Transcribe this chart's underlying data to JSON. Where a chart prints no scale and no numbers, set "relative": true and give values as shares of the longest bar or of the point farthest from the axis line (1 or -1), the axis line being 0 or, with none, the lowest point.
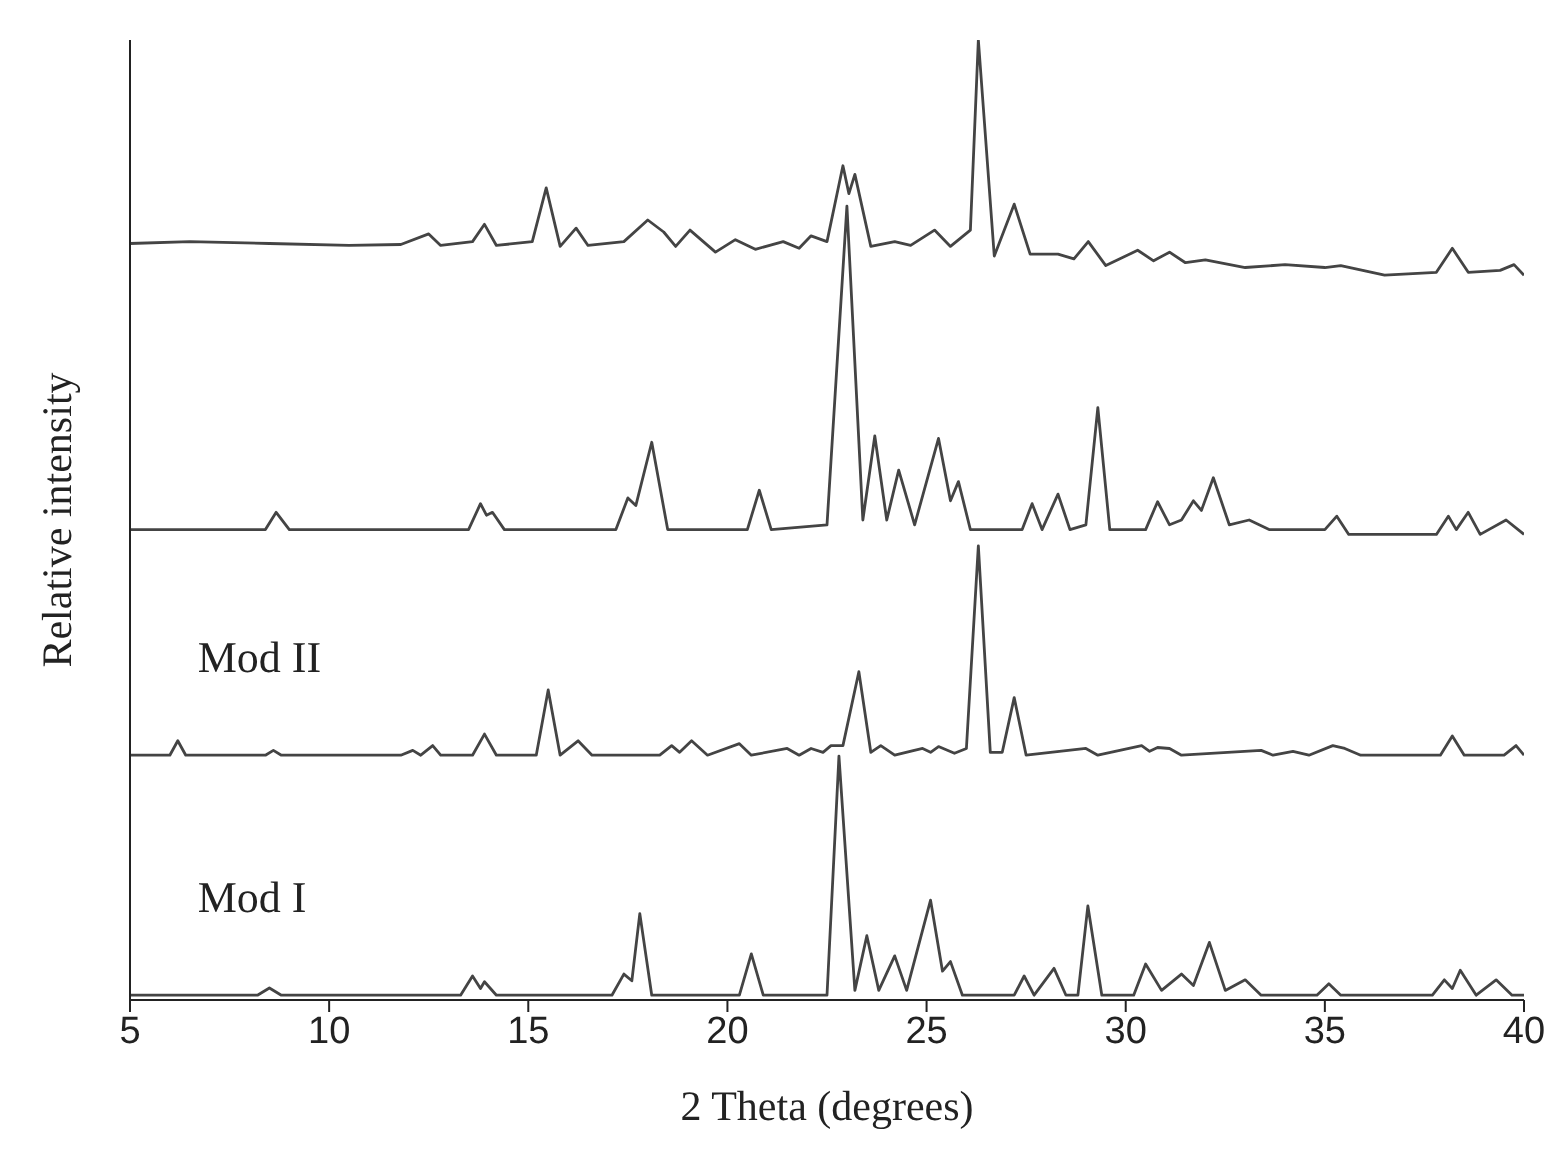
{
  "chart_data": {
    "type": "line",
    "relative": true,
    "xlabel": "2 Theta (degrees)",
    "ylabel": "Relative intensity",
    "xlim": [
      5,
      40
    ],
    "xticks": [
      5,
      10,
      15,
      20,
      25,
      30,
      35,
      40
    ],
    "legend": false,
    "grid": false,
    "marker": "none",
    "line_style": "solid",
    "series": [
      {
        "color": "#444444",
        "x": [
          5,
          6.5,
          8.5,
          10.5,
          11.8,
          12.5,
          12.8,
          13.6,
          13.9,
          14.2,
          15.1,
          15.45,
          15.8,
          16.2,
          16.5,
          17.4,
          18.0,
          18.4,
          18.7,
          19.06,
          19.7,
          20.2,
          20.7,
          21.4,
          21.8,
          22.1,
          22.5,
          22.9,
          23.05,
          23.2,
          23.6,
          24.2,
          24.6,
          25.2,
          25.6,
          26.1,
          26.3,
          26.7,
          27.2,
          27.6,
          28.3,
          28.7,
          29.06,
          29.5,
          30.3,
          30.7,
          31.1,
          31.5,
          32.0,
          33.0,
          34.0,
          35.0,
          35.4,
          36.5,
          37.8,
          38.2,
          38.6,
          39.4,
          39.75,
          40
        ],
        "values": [
          0.788,
          0.79,
          0.788,
          0.786,
          0.787,
          0.798,
          0.786,
          0.79,
          0.808,
          0.786,
          0.79,
          0.846,
          0.785,
          0.804,
          0.786,
          0.79,
          0.8125,
          0.8,
          0.785,
          0.802,
          0.779,
          0.792,
          0.782,
          0.79,
          0.783,
          0.796,
          0.79,
          0.869,
          0.84,
          0.86,
          0.785,
          0.79,
          0.786,
          0.802,
          0.785,
          0.802,
          1.0,
          0.775,
          0.829,
          0.777,
          0.777,
          0.772,
          0.79,
          0.765,
          0.781,
          0.77,
          0.779,
          0.768,
          0.771,
          0.763,
          0.766,
          0.763,
          0.765,
          0.755,
          0.758,
          0.783,
          0.758,
          0.76,
          0.766,
          0.755
        ]
      },
      {
        "color": "#444444",
        "x": [
          5,
          8.4,
          8.67,
          9.0,
          13.5,
          13.8,
          13.95,
          14.1,
          14.4,
          17.2,
          17.5,
          17.7,
          18.1,
          18.5,
          20.5,
          20.8,
          21.1,
          22.5,
          23.0,
          23.4,
          23.7,
          24.0,
          24.3,
          24.7,
          25.3,
          25.6,
          25.8,
          26.1,
          27.4,
          27.65,
          27.9,
          28.3,
          28.6,
          29.0,
          29.3,
          29.6,
          30.5,
          30.8,
          31.1,
          31.4,
          31.7,
          31.9,
          32.2,
          32.6,
          33.1,
          33.6,
          35.0,
          35.3,
          35.6,
          37.8,
          38.1,
          38.3,
          38.6,
          38.9,
          39.55,
          40
        ],
        "values": [
          0.49,
          0.49,
          0.508,
          0.49,
          0.49,
          0.517,
          0.505,
          0.508,
          0.49,
          0.49,
          0.523,
          0.515,
          0.581,
          0.49,
          0.49,
          0.531,
          0.49,
          0.495,
          0.827,
          0.5,
          0.5875,
          0.5,
          0.552,
          0.495,
          0.585,
          0.52,
          0.54,
          0.49,
          0.49,
          0.517,
          0.49,
          0.527,
          0.49,
          0.495,
          0.617,
          0.49,
          0.49,
          0.519,
          0.495,
          0.5,
          0.52,
          0.51,
          0.544,
          0.495,
          0.5,
          0.49,
          0.49,
          0.504,
          0.485,
          0.485,
          0.504,
          0.49,
          0.508,
          0.485,
          0.5,
          0.485
        ]
      },
      {
        "name": "Mod II",
        "color": "#444444",
        "x": [
          5,
          6.0,
          6.2,
          6.4,
          8.4,
          8.6,
          8.8,
          11.8,
          12.1,
          12.3,
          12.6,
          12.8,
          13.6,
          13.9,
          14.2,
          15.2,
          15.5,
          15.8,
          16.25,
          16.6,
          18.3,
          18.6,
          18.8,
          19.1,
          19.5,
          20.3,
          20.6,
          21.5,
          21.8,
          22.1,
          22.4,
          22.6,
          22.9,
          23.3,
          23.6,
          23.85,
          24.2,
          24.9,
          25.1,
          25.3,
          25.7,
          26.0,
          26.3,
          26.6,
          26.9,
          27.2,
          27.5,
          29.0,
          29.3,
          30.4,
          30.6,
          30.8,
          31.1,
          31.4,
          33.4,
          33.7,
          34.2,
          34.6,
          35.2,
          35.5,
          35.9,
          37.9,
          38.2,
          38.5,
          39.5,
          39.8,
          40
        ],
        "values": [
          0.255,
          0.255,
          0.27,
          0.255,
          0.255,
          0.26,
          0.255,
          0.255,
          0.26,
          0.255,
          0.265,
          0.255,
          0.255,
          0.277,
          0.255,
          0.255,
          0.323,
          0.255,
          0.27,
          0.255,
          0.255,
          0.265,
          0.258,
          0.27,
          0.255,
          0.267,
          0.255,
          0.262,
          0.255,
          0.262,
          0.258,
          0.265,
          0.265,
          0.342,
          0.258,
          0.265,
          0.255,
          0.262,
          0.258,
          0.264,
          0.257,
          0.262,
          0.473,
          0.258,
          0.258,
          0.315,
          0.255,
          0.262,
          0.255,
          0.265,
          0.259,
          0.263,
          0.262,
          0.255,
          0.26,
          0.255,
          0.259,
          0.255,
          0.265,
          0.262,
          0.255,
          0.255,
          0.275,
          0.255,
          0.255,
          0.265,
          0.255
        ]
      },
      {
        "name": "Mod I",
        "color": "#444444",
        "x": [
          5,
          8.2,
          8.5,
          8.8,
          13.3,
          13.6,
          13.8,
          13.9,
          14.2,
          17.1,
          17.4,
          17.6,
          17.8,
          18.1,
          20.3,
          20.6,
          20.9,
          22.5,
          22.8,
          23.2,
          23.5,
          23.8,
          24.2,
          24.5,
          25.1,
          25.4,
          25.6,
          25.9,
          27.2,
          27.45,
          27.7,
          28.2,
          28.5,
          28.8,
          29.05,
          29.4,
          30.2,
          30.5,
          30.9,
          31.4,
          31.7,
          32.1,
          32.5,
          33.0,
          33.4,
          34.8,
          35.1,
          35.4,
          37.7,
          38.0,
          38.2,
          38.4,
          38.8,
          39.3,
          39.7,
          40
        ],
        "values": [
          0.005,
          0.005,
          0.0125,
          0.005,
          0.005,
          0.025,
          0.012,
          0.019,
          0.005,
          0.005,
          0.027,
          0.02,
          0.09,
          0.005,
          0.005,
          0.048,
          0.005,
          0.005,
          0.254,
          0.01,
          0.067,
          0.01,
          0.046,
          0.01,
          0.104,
          0.03,
          0.04,
          0.005,
          0.005,
          0.025,
          0.005,
          0.033,
          0.005,
          0.005,
          0.098,
          0.005,
          0.005,
          0.0375,
          0.01,
          0.027,
          0.015,
          0.06,
          0.01,
          0.021,
          0.005,
          0.005,
          0.017,
          0.005,
          0.005,
          0.021,
          0.012,
          0.031,
          0.005,
          0.021,
          0.005,
          0.005
        ]
      }
    ]
  }
}
